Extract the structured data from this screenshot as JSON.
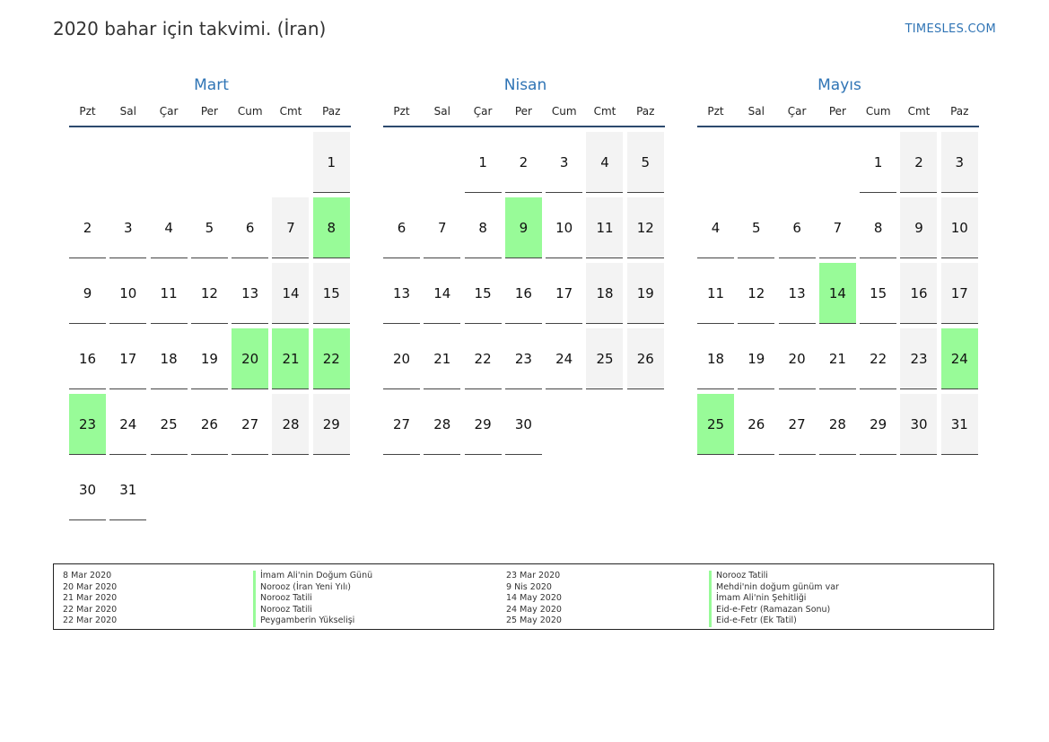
{
  "title": "2020 bahar için takvimi. (İran)",
  "site": "TIMESLES.COM",
  "weekdays": [
    "Pzt",
    "Sal",
    "Çar",
    "Per",
    "Cum",
    "Cmt",
    "Paz"
  ],
  "months": [
    {
      "name": "Mart",
      "offset": 6,
      "days": 31,
      "holidays": [
        8,
        20,
        21,
        22,
        23
      ]
    },
    {
      "name": "Nisan",
      "offset": 2,
      "days": 30,
      "holidays": [
        9
      ]
    },
    {
      "name": "Mayıs",
      "offset": 4,
      "days": 31,
      "holidays": [
        14,
        24,
        25
      ]
    }
  ],
  "legend_left": [
    {
      "date": "8 Mar 2020",
      "name": "İmam Ali'nin Doğum Günü"
    },
    {
      "date": "20 Mar 2020",
      "name": "Norooz (İran Yeni Yılı)"
    },
    {
      "date": "21 Mar 2020",
      "name": "Norooz Tatili"
    },
    {
      "date": "22 Mar 2020",
      "name": "Norooz Tatili"
    },
    {
      "date": "22 Mar 2020",
      "name": "Peygamberin Yükselişi"
    }
  ],
  "legend_right": [
    {
      "date": "23 Mar 2020",
      "name": "Norooz Tatili"
    },
    {
      "date": "9 Nis 2020",
      "name": "Mehdi'nin doğum günüm var"
    },
    {
      "date": "14 May 2020",
      "name": "İmam Ali'nin Şehitliği"
    },
    {
      "date": "24 May 2020",
      "name": "Eid-e-Fetr (Ramazan Sonu)"
    },
    {
      "date": "25 May 2020",
      "name": "Eid-e-Fetr (Ek Tatil)"
    }
  ],
  "colors": {
    "accent": "#2f74b5",
    "holiday": "#98fb98",
    "weekend": "#f3f3f3"
  }
}
